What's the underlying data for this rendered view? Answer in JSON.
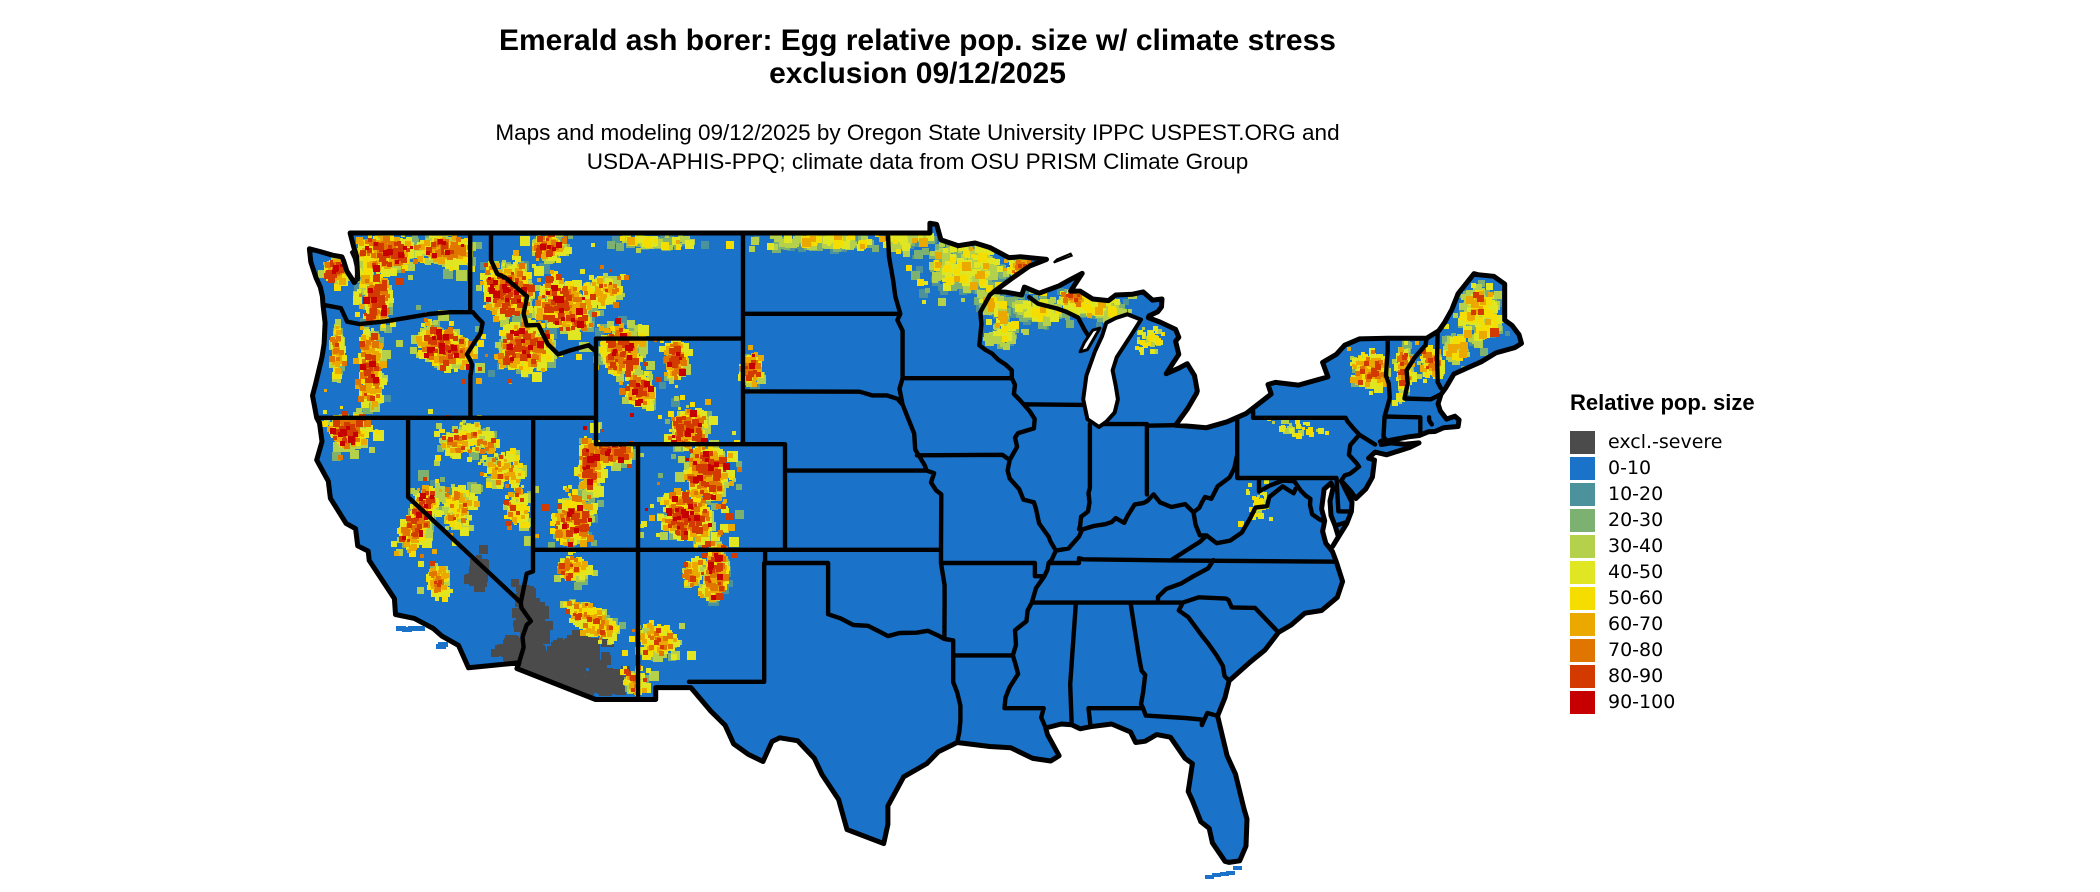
{
  "page": {
    "background": "#ffffff"
  },
  "header": {
    "title_line1": "Emerald ash borer: Egg relative pop. size w/ climate stress",
    "title_line2": "exclusion 09/12/2025",
    "subtitle_line1": "Maps and modeling 09/12/2025 by Oregon State University IPPC USPEST.ORG and",
    "subtitle_line2": "USDA-APHIS-PPQ; climate data from OSU PRISM Climate Group"
  },
  "legend": {
    "title": "Relative pop. size",
    "items": [
      {
        "label": "excl.-severe",
        "color": "#4b4b4b"
      },
      {
        "label": "0-10",
        "color": "#1a73c8"
      },
      {
        "label": "10-20",
        "color": "#4b929c"
      },
      {
        "label": "20-30",
        "color": "#7db171"
      },
      {
        "label": "30-40",
        "color": "#b5d04a"
      },
      {
        "label": "40-50",
        "color": "#e0e722"
      },
      {
        "label": "50-60",
        "color": "#f6dd00"
      },
      {
        "label": "60-70",
        "color": "#eba900"
      },
      {
        "label": "70-80",
        "color": "#e07600"
      },
      {
        "label": "80-90",
        "color": "#d33a00"
      },
      {
        "label": "90-100",
        "color": "#c60000"
      }
    ]
  },
  "map": {
    "region_label": "Contiguous United States",
    "base_class": "0-10",
    "base_color": "#1a73c8",
    "boundary_color": "#000000",
    "water_color": "#ffffff",
    "excluded_class": "excl.-severe",
    "excluded_region_color": "#4b4b4b",
    "high_value_regions": "Western mountain ranges (Cascades, Sierra Nevada, Rockies, Wasatch), northern Minnesota / Upper Great Lakes, Adirondacks, northern New England",
    "excluded_regions": "Sonoran Desert of southwestern Arizona and adjacent southeastern California"
  }
}
